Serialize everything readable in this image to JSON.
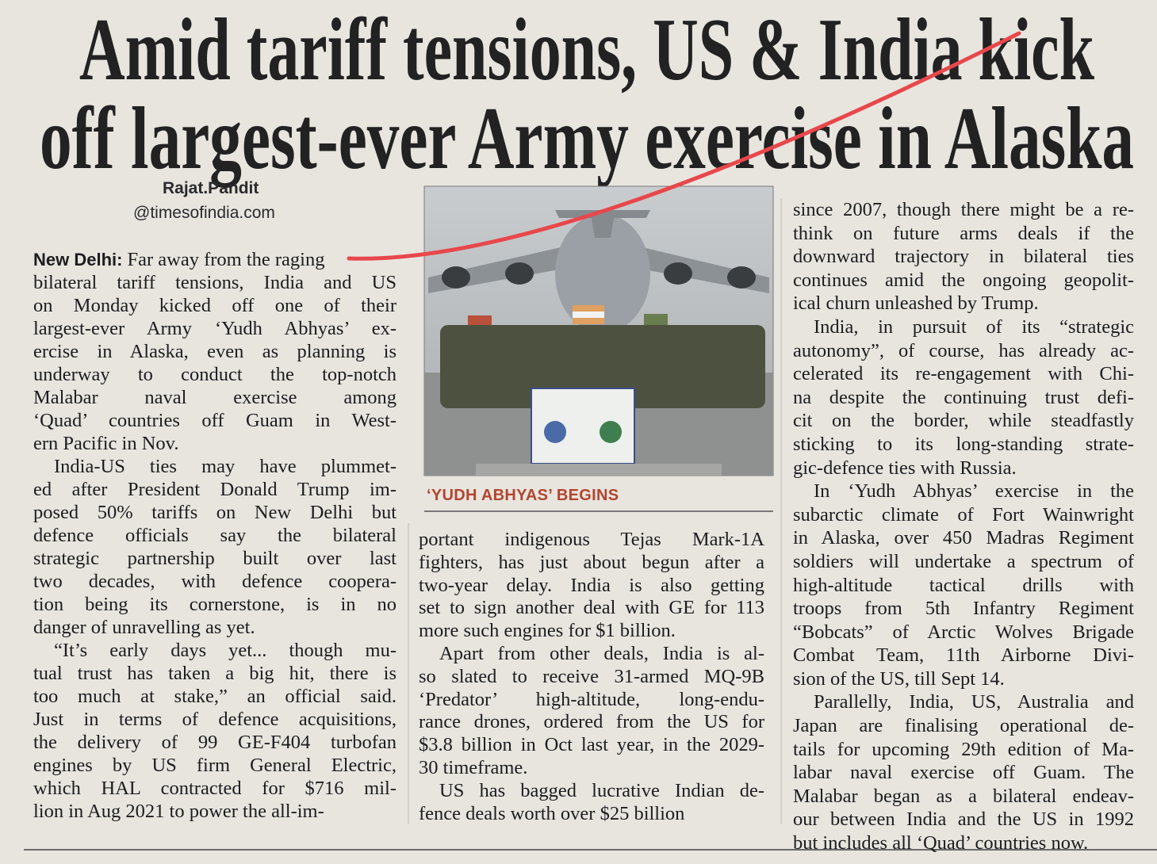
{
  "headline": {
    "lines": [
      "Amid tariff tensions, US & India kick",
      "off largest-ever Army exercise in Alaska"
    ]
  },
  "byline": {
    "author": "Rajat.Pandit",
    "handle": "@timesofindia.com"
  },
  "photo": {
    "caption": "‘YUDH ABHYAS’ BEGINS"
  },
  "article": {
    "dateline": "New Delhi:",
    "columns": [
      {
        "paragraphs": [
          {
            "lines": [
              "Far away from the raging",
              "bilateral tariff tensions, India and US",
              "on Monday kicked off one of their",
              "largest-ever Army ‘Yudh Abhyas’ ex-",
              "ercise in Alaska, even as planning is",
              "underway to conduct the top-notch",
              "Malabar naval exercise among",
              "‘Quad’ countries off Guam in West-",
              "ern Pacific in Nov."
            ]
          },
          {
            "lines": [
              "India-US ties may have plummet-",
              "ed after President Donald Trump im-",
              "posed 50% tariffs on New Delhi but",
              "defence officials say the bilateral",
              "strategic partnership built over last",
              "two decades, with defence coopera-",
              "tion being its cornerstone, is in no",
              "danger of unravelling as yet."
            ]
          },
          {
            "lines": [
              "“It’s early days yet... though mu-",
              "tual trust has taken a big hit, there is",
              "too much at stake,” an official said.",
              "Just in terms of defence acquisitions,",
              "the delivery of 99 GE-F404 turbofan",
              "engines by US firm General Electric,",
              "which HAL contracted for $716 mil-",
              "lion in Aug 2021 to power the all-im-"
            ]
          }
        ]
      },
      {
        "paragraphs": [
          {
            "lines": [
              "portant indigenous Tejas Mark-1A",
              "fighters, has just about begun after a",
              "two-year delay. India is also getting",
              "set to sign another deal with GE for 113",
              "more such engines for $1 billion."
            ]
          },
          {
            "lines": [
              "Apart from other deals, India is al-",
              "so slated to receive 31-armed MQ-9B",
              "‘Predator’ high-altitude, long-endu-",
              "rance drones, ordered from the US for",
              "$3.8 billion in Oct last year, in the 2029-",
              "30 timeframe."
            ]
          },
          {
            "lines": [
              "US has bagged lucrative Indian de-",
              "fence deals worth over $25 billion"
            ]
          }
        ]
      },
      {
        "paragraphs": [
          {
            "lines": [
              "since 2007, though there might be a re-",
              "think on future arms deals if the",
              "downward trajectory in bilateral ties",
              "continues amid the ongoing geopolit-",
              "ical churn unleashed by Trump."
            ]
          },
          {
            "lines": [
              "India, in pursuit of its “strategic",
              "autonomy”, of course, has already ac-",
              "celerated its re-engagement with Chi-",
              "na despite the continuing trust defi-",
              "cit on the border, while steadfastly",
              "sticking to its long-standing strate-",
              "gic-defence ties with Russia."
            ]
          },
          {
            "lines": [
              "In ‘Yudh Abhyas’ exercise in the",
              "subarctic climate of Fort Wainwright",
              "in Alaska, over 450 Madras Regiment",
              "soldiers will undertake a spectrum of",
              "high-altitude tactical drills with",
              "troops from 5th Infantry Regiment",
              "“Bobcats” of Arctic Wolves Brigade",
              "Combat Team, 11th Airborne Divi-",
              "sion of the US, till Sept 14."
            ]
          },
          {
            "lines": [
              "Parallelly, India, US, Australia and",
              "Japan are finalising operational de-",
              "tails for upcoming 29th edition of Ma-",
              "labar naval exercise off Guam. The",
              "Malabar began as a bilateral endeav-",
              "our between India and the US in 1992",
              "but includes all ‘Quad’ countries now."
            ]
          }
        ]
      }
    ]
  }
}
